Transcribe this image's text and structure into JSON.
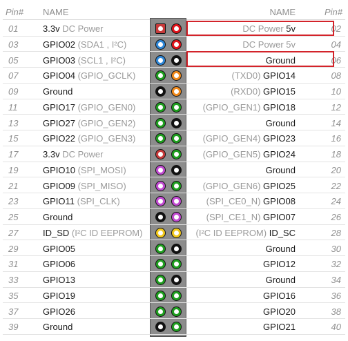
{
  "header": {
    "pin_left": "Pin#",
    "name_left": "NAME",
    "name_right": "NAME",
    "pin_right": "Pin#"
  },
  "colors": {
    "power3v3": "#c83a3a",
    "power5v": "#e0141c",
    "i2c": "#2e86d6",
    "ground": "#111111",
    "gpio": "#1f9e1f",
    "uart": "#f08a1c",
    "spi": "#c04ad0",
    "eeprom": "#f2c81a",
    "highlight": "#d3232a"
  },
  "rows": [
    {
      "lnum": "01",
      "lmain": "3.3v",
      "ldim": " DC Power",
      "lcolor": "power3v3",
      "lshape": "square",
      "rnum": "02",
      "rmain": "5v",
      "rdim": "DC Power ",
      "rcolor": "power5v"
    },
    {
      "lnum": "03",
      "lmain": "GPIO02",
      "ldim": " (SDA1 , I²C)",
      "lcolor": "i2c",
      "rnum": "04",
      "rmain": "",
      "rdim": "DC Power 5v",
      "rcolor": "power5v"
    },
    {
      "lnum": "05",
      "lmain": "GPIO03",
      "ldim": " (SCL1 , I²C)",
      "lcolor": "i2c",
      "rnum": "06",
      "rmain": "Ground",
      "rdim": "",
      "rcolor": "ground"
    },
    {
      "lnum": "07",
      "lmain": "GPIO04",
      "ldim": " (GPIO_GCLK)",
      "lcolor": "gpio",
      "rnum": "08",
      "rmain": "GPIO14",
      "rdim": "(TXD0) ",
      "rcolor": "uart"
    },
    {
      "lnum": "09",
      "lmain": "Ground",
      "ldim": "",
      "lcolor": "ground",
      "rnum": "10",
      "rmain": "GPIO15",
      "rdim": "(RXD0) ",
      "rcolor": "uart"
    },
    {
      "lnum": "11",
      "lmain": "GPIO17",
      "ldim": " (GPIO_GEN0)",
      "lcolor": "gpio",
      "rnum": "12",
      "rmain": "GPIO18",
      "rdim": "(GPIO_GEN1) ",
      "rcolor": "gpio"
    },
    {
      "lnum": "13",
      "lmain": "GPIO27",
      "ldim": " (GPIO_GEN2)",
      "lcolor": "gpio",
      "rnum": "14",
      "rmain": "Ground",
      "rdim": "",
      "rcolor": "ground"
    },
    {
      "lnum": "15",
      "lmain": "GPIO22",
      "ldim": " (GPIO_GEN3)",
      "lcolor": "gpio",
      "rnum": "16",
      "rmain": "GPIO23",
      "rdim": "(GPIO_GEN4) ",
      "rcolor": "gpio"
    },
    {
      "lnum": "17",
      "lmain": "3.3v",
      "ldim": " DC Power",
      "lcolor": "power3v3",
      "rnum": "18",
      "rmain": "GPIO24",
      "rdim": "(GPIO_GEN5) ",
      "rcolor": "gpio"
    },
    {
      "lnum": "19",
      "lmain": "GPIO10",
      "ldim": " (SPI_MOSI)",
      "lcolor": "spi",
      "rnum": "20",
      "rmain": "Ground",
      "rdim": "",
      "rcolor": "ground"
    },
    {
      "lnum": "21",
      "lmain": "GPIO09",
      "ldim": " (SPI_MISO)",
      "lcolor": "spi",
      "rnum": "22",
      "rmain": "GPIO25",
      "rdim": "(GPIO_GEN6) ",
      "rcolor": "gpio"
    },
    {
      "lnum": "23",
      "lmain": "GPIO11",
      "ldim": " (SPI_CLK)",
      "lcolor": "spi",
      "rnum": "24",
      "rmain": "GPIO08",
      "rdim": "(SPI_CE0_N) ",
      "rcolor": "spi"
    },
    {
      "lnum": "25",
      "lmain": "Ground",
      "ldim": "",
      "lcolor": "ground",
      "rnum": "26",
      "rmain": "GPIO07",
      "rdim": "(SPI_CE1_N) ",
      "rcolor": "spi"
    },
    {
      "lnum": "27",
      "lmain": "ID_SD",
      "ldim": " (I²C ID EEPROM)",
      "lcolor": "eeprom",
      "rnum": "28",
      "rmain": "ID_SC",
      "rdim": "(I²C ID EEPROM) ",
      "rcolor": "eeprom"
    },
    {
      "lnum": "29",
      "lmain": "GPIO05",
      "ldim": "",
      "lcolor": "gpio",
      "rnum": "30",
      "rmain": "Ground",
      "rdim": "",
      "rcolor": "ground"
    },
    {
      "lnum": "31",
      "lmain": "GPIO06",
      "ldim": "",
      "lcolor": "gpio",
      "rnum": "32",
      "rmain": "GPIO12",
      "rdim": "",
      "rcolor": "gpio"
    },
    {
      "lnum": "33",
      "lmain": "GPIO13",
      "ldim": "",
      "lcolor": "gpio",
      "rnum": "34",
      "rmain": "Ground",
      "rdim": "",
      "rcolor": "ground"
    },
    {
      "lnum": "35",
      "lmain": "GPIO19",
      "ldim": "",
      "lcolor": "gpio",
      "rnum": "36",
      "rmain": "GPIO16",
      "rdim": "",
      "rcolor": "gpio"
    },
    {
      "lnum": "37",
      "lmain": "GPIO26",
      "ldim": "",
      "lcolor": "gpio",
      "rnum": "38",
      "rmain": "GPIO20",
      "rdim": "",
      "rcolor": "gpio"
    },
    {
      "lnum": "39",
      "lmain": "Ground",
      "ldim": "",
      "lcolor": "ground",
      "rnum": "40",
      "rmain": "GPIO21",
      "rdim": "",
      "rcolor": "gpio"
    }
  ],
  "highlighted_pins": [
    "02",
    "06"
  ]
}
